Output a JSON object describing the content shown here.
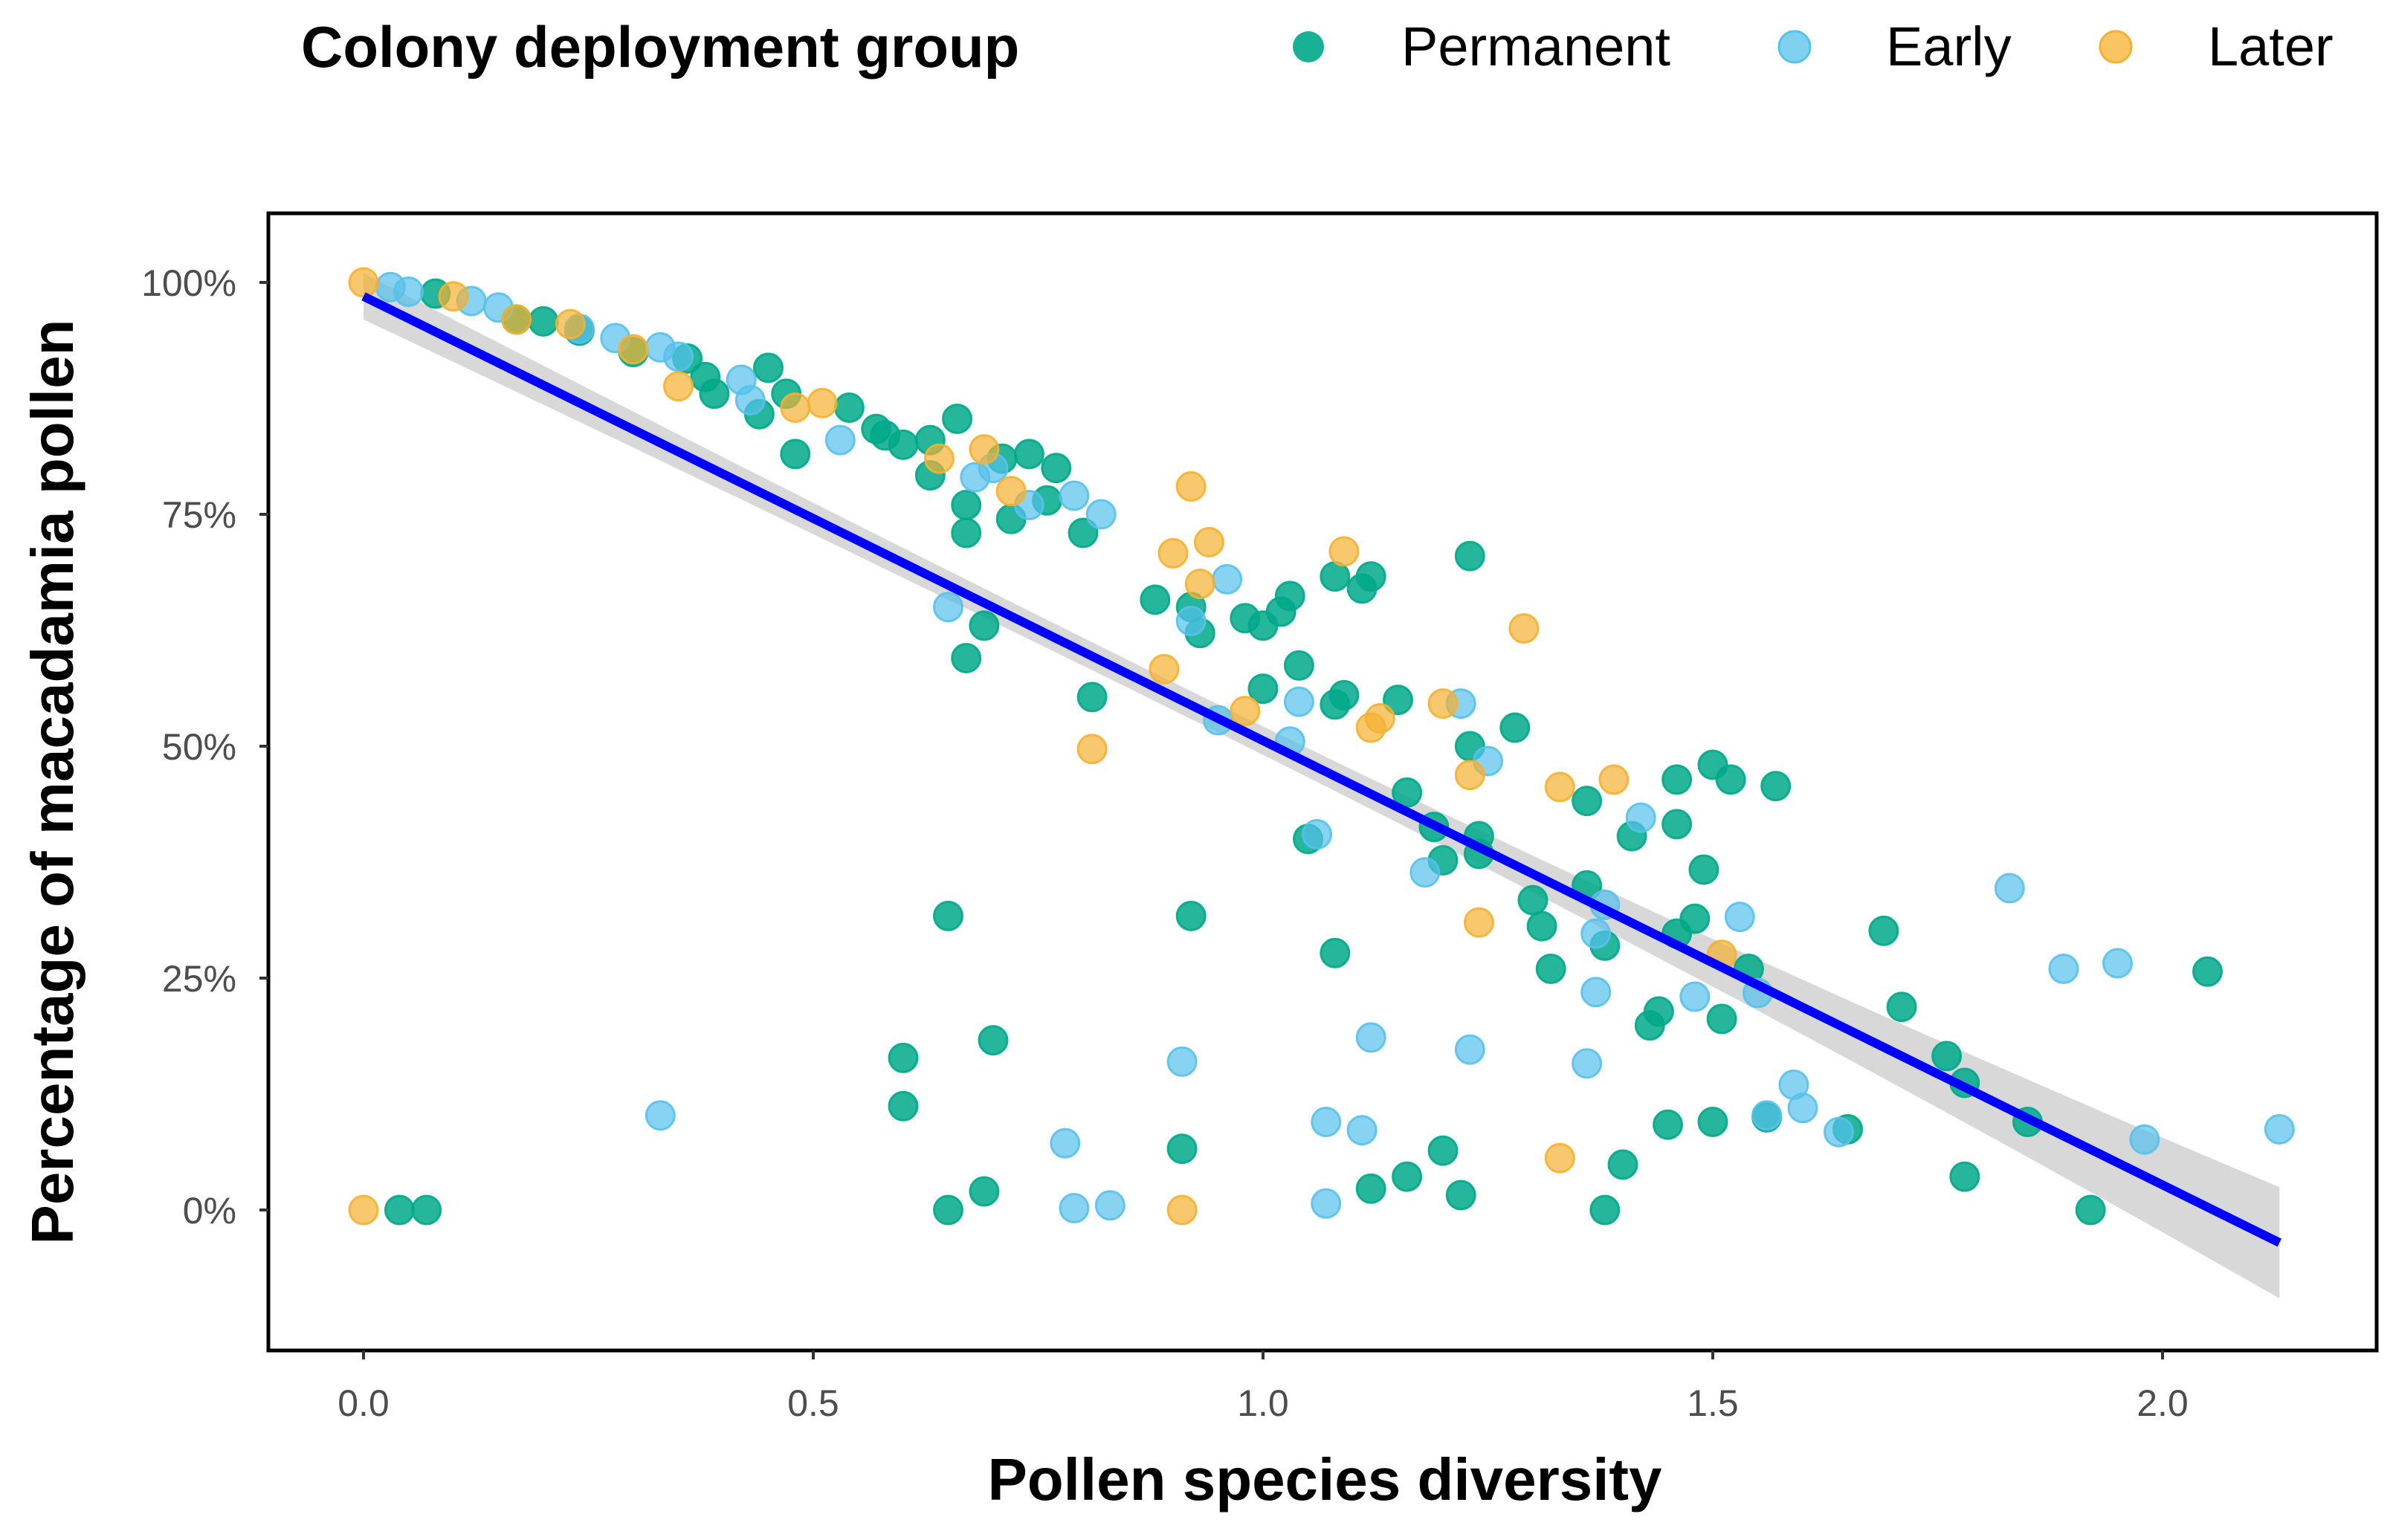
{
  "chart_data": {
    "type": "scatter",
    "title": "",
    "xlabel": "Pollen species diversity",
    "ylabel": "Percentage of macadamia pollen",
    "xlim": [
      -0.105,
      2.235
    ],
    "ylim": [
      -15,
      107.5
    ],
    "xticks": [
      0.0,
      0.5,
      1.0,
      1.5,
      2.0
    ],
    "xtick_labels": [
      "0.0",
      "0.5",
      "1.0",
      "1.5",
      "2.0"
    ],
    "yticks": [
      0,
      25,
      50,
      75,
      100
    ],
    "ytick_labels": [
      "0%",
      "25%",
      "50%",
      "75%",
      "100%"
    ],
    "grid": false,
    "legend": {
      "title": "Colony deployment group",
      "placement": "top",
      "entries": [
        "Permanent",
        "Early",
        "Later"
      ]
    },
    "colors": {
      "Permanent": "#00A98A",
      "Early": "#56C1EB",
      "Later": "#F5B030",
      "fit": "#0000FF",
      "band": "#BEBEBE"
    },
    "fit": {
      "type": "linear",
      "intercept": 98.5,
      "slope": -47.9,
      "x_range": [
        0,
        2.13
      ],
      "ci_halfwidth_at": {
        "0": 2.5,
        "0.9": 1.5,
        "2.13": 6.0
      }
    },
    "series": [
      {
        "name": "Permanent",
        "points": [
          [
            0.08,
            98.8
          ],
          [
            0.17,
            96
          ],
          [
            0.2,
            95.8
          ],
          [
            0.24,
            94.8
          ],
          [
            0.3,
            92.5
          ],
          [
            0.36,
            91.8
          ],
          [
            0.38,
            89.8
          ],
          [
            0.39,
            88
          ],
          [
            0.45,
            90.8
          ],
          [
            0.44,
            85.8
          ],
          [
            0.47,
            88
          ],
          [
            0.48,
            81.5
          ],
          [
            0.54,
            86.5
          ],
          [
            0.57,
            84.2
          ],
          [
            0.58,
            83.5
          ],
          [
            0.6,
            82.5
          ],
          [
            0.63,
            83
          ],
          [
            0.63,
            79.2
          ],
          [
            0.66,
            85.3
          ],
          [
            0.67,
            76
          ],
          [
            0.67,
            73
          ],
          [
            0.71,
            81
          ],
          [
            0.72,
            74.5
          ],
          [
            0.74,
            81.5
          ],
          [
            0.76,
            76.5
          ],
          [
            0.77,
            80
          ],
          [
            0.8,
            73
          ],
          [
            0.69,
            63
          ],
          [
            0.67,
            59.5
          ],
          [
            0.88,
            65.8
          ],
          [
            0.92,
            65
          ],
          [
            0.93,
            62.2
          ],
          [
            0.98,
            63.8
          ],
          [
            1.0,
            63
          ],
          [
            1.03,
            66.2
          ],
          [
            1.02,
            64.5
          ],
          [
            1.04,
            58.7
          ],
          [
            1.0,
            56.2
          ],
          [
            0.81,
            55.3
          ],
          [
            1.08,
            68.3
          ],
          [
            1.11,
            67
          ],
          [
            1.12,
            68.3
          ],
          [
            1.09,
            55.5
          ],
          [
            1.08,
            54.5
          ],
          [
            1.15,
            55
          ],
          [
            1.23,
            70.5
          ],
          [
            1.23,
            50
          ],
          [
            1.28,
            52
          ],
          [
            1.16,
            45
          ],
          [
            1.19,
            41.3
          ],
          [
            1.2,
            37.7
          ],
          [
            1.24,
            38.4
          ],
          [
            1.24,
            40.3
          ],
          [
            1.05,
            40
          ],
          [
            1.08,
            27.7
          ],
          [
            0.92,
            31.7
          ],
          [
            0.65,
            31.7
          ],
          [
            0.6,
            16.4
          ],
          [
            0.6,
            11.2
          ],
          [
            0.7,
            18.3
          ],
          [
            0.91,
            6.6
          ],
          [
            0.65,
            0
          ],
          [
            0.69,
            2
          ],
          [
            0.04,
            0
          ],
          [
            0.07,
            0
          ],
          [
            1.12,
            2.3
          ],
          [
            1.16,
            3.6
          ],
          [
            1.2,
            6.4
          ],
          [
            1.22,
            1.6
          ],
          [
            1.3,
            33.4
          ],
          [
            1.31,
            30.6
          ],
          [
            1.32,
            26
          ],
          [
            1.36,
            44.1
          ],
          [
            1.36,
            35
          ],
          [
            1.38,
            28.5
          ],
          [
            1.4,
            4.9
          ],
          [
            1.38,
            0
          ],
          [
            1.41,
            40.3
          ],
          [
            1.46,
            46.4
          ],
          [
            1.46,
            41.6
          ],
          [
            1.5,
            48
          ],
          [
            1.52,
            46.4
          ],
          [
            1.57,
            45.7
          ],
          [
            1.49,
            36.7
          ],
          [
            1.48,
            31.4
          ],
          [
            1.46,
            29.8
          ],
          [
            1.54,
            26
          ],
          [
            1.51,
            20.6
          ],
          [
            1.44,
            21.4
          ],
          [
            1.43,
            19.9
          ],
          [
            1.45,
            9.2
          ],
          [
            1.5,
            9.5
          ],
          [
            1.56,
            10
          ],
          [
            1.65,
            8.7
          ],
          [
            1.69,
            30.1
          ],
          [
            1.71,
            21.9
          ],
          [
            1.76,
            16.6
          ],
          [
            1.78,
            13.7
          ],
          [
            1.78,
            3.6
          ],
          [
            1.85,
            9.5
          ],
          [
            1.92,
            0
          ],
          [
            2.05,
            25.7
          ]
        ]
      },
      {
        "name": "Early",
        "points": [
          [
            0.03,
            99.5
          ],
          [
            0.05,
            99
          ],
          [
            0.12,
            98
          ],
          [
            0.15,
            97.3
          ],
          [
            0.24,
            95
          ],
          [
            0.28,
            94
          ],
          [
            0.33,
            93
          ],
          [
            0.35,
            92
          ],
          [
            0.42,
            89.5
          ],
          [
            0.43,
            87.3
          ],
          [
            0.53,
            83
          ],
          [
            0.68,
            79
          ],
          [
            0.7,
            80
          ],
          [
            0.74,
            76
          ],
          [
            0.79,
            77
          ],
          [
            0.82,
            75
          ],
          [
            0.65,
            65
          ],
          [
            0.96,
            68
          ],
          [
            0.92,
            63.5
          ],
          [
            1.04,
            54.8
          ],
          [
            1.03,
            50.5
          ],
          [
            0.95,
            52.8
          ],
          [
            1.22,
            54.6
          ],
          [
            1.25,
            48.4
          ],
          [
            1.18,
            36.4
          ],
          [
            1.06,
            40.5
          ],
          [
            0.91,
            16
          ],
          [
            0.78,
            7.2
          ],
          [
            0.79,
            0.2
          ],
          [
            0.83,
            0.5
          ],
          [
            0.33,
            10.2
          ],
          [
            1.07,
            9.5
          ],
          [
            1.11,
            8.6
          ],
          [
            1.07,
            0.7
          ],
          [
            1.12,
            18.6
          ],
          [
            1.23,
            17.3
          ],
          [
            1.37,
            29.8
          ],
          [
            1.38,
            32.9
          ],
          [
            1.37,
            23.5
          ],
          [
            1.36,
            15.8
          ],
          [
            1.42,
            42.3
          ],
          [
            1.53,
            31.6
          ],
          [
            1.55,
            23.4
          ],
          [
            1.48,
            23
          ],
          [
            1.56,
            10.2
          ],
          [
            1.59,
            13.5
          ],
          [
            1.6,
            11
          ],
          [
            1.64,
            8.4
          ],
          [
            1.83,
            34.7
          ],
          [
            1.89,
            26
          ],
          [
            1.95,
            26.6
          ],
          [
            1.98,
            7.6
          ],
          [
            2.13,
            8.7
          ]
        ]
      },
      {
        "name": "Later",
        "points": [
          [
            0,
            100
          ],
          [
            0.1,
            98.5
          ],
          [
            0.17,
            96
          ],
          [
            0.23,
            95.5
          ],
          [
            0.3,
            92.8
          ],
          [
            0.35,
            88.8
          ],
          [
            0.48,
            86.5
          ],
          [
            0.51,
            87
          ],
          [
            0.64,
            81
          ],
          [
            0.69,
            82
          ],
          [
            0.72,
            77.5
          ],
          [
            0.92,
            78
          ],
          [
            0.9,
            70.8
          ],
          [
            0.94,
            72
          ],
          [
            0.93,
            67.5
          ],
          [
            0.89,
            58.3
          ],
          [
            0.98,
            53.8
          ],
          [
            0.81,
            49.7
          ],
          [
            1.09,
            71
          ],
          [
            1.13,
            53
          ],
          [
            1.12,
            52
          ],
          [
            1.29,
            62.7
          ],
          [
            1.2,
            54.6
          ],
          [
            1.23,
            46.9
          ],
          [
            1.24,
            31
          ],
          [
            0.91,
            0
          ],
          [
            0,
            0
          ],
          [
            1.33,
            45.6
          ],
          [
            1.39,
            46.4
          ],
          [
            1.33,
            5.6
          ],
          [
            1.51,
            27.5
          ]
        ]
      }
    ]
  }
}
